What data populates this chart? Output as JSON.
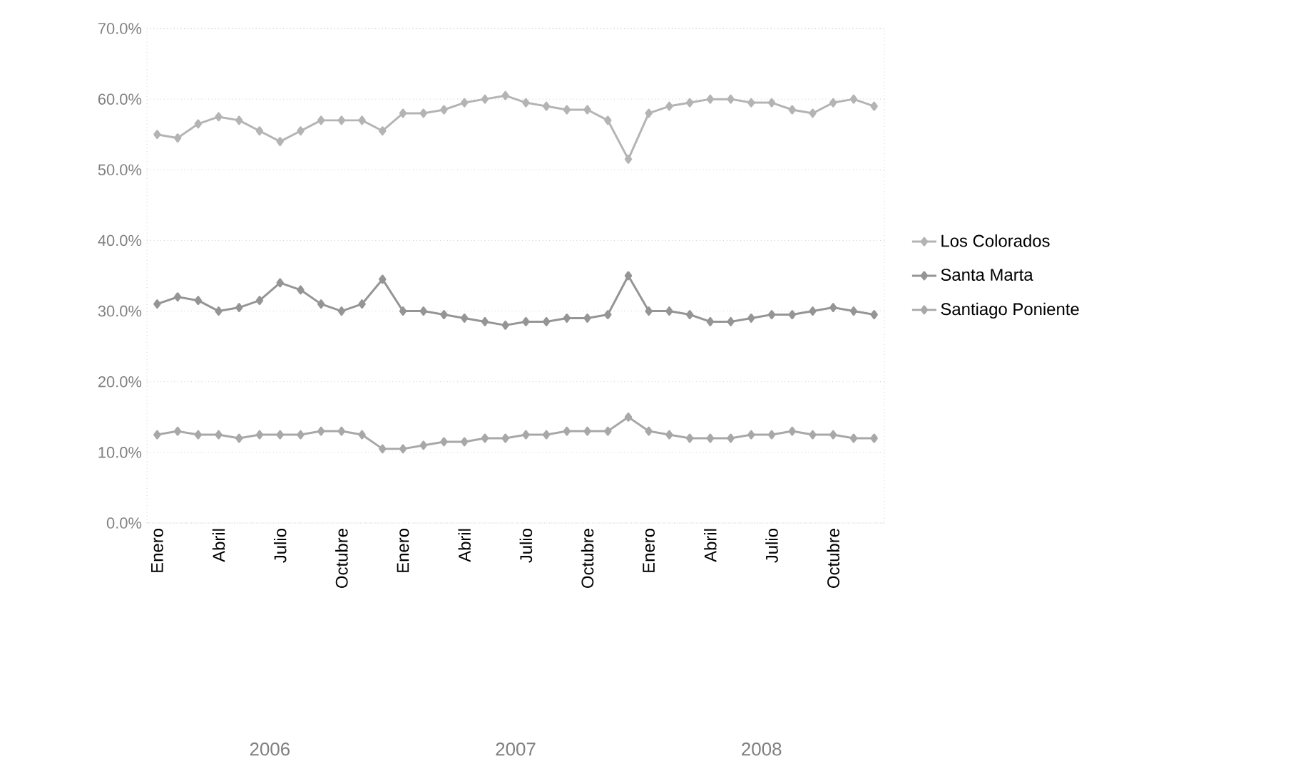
{
  "chart_data": {
    "type": "line",
    "categories": [
      "Enero",
      null,
      null,
      "Abril",
      null,
      null,
      "Julio",
      null,
      null,
      "Octubre",
      null,
      null,
      "Enero",
      null,
      null,
      "Abril",
      null,
      null,
      "Julio",
      null,
      null,
      "Octubre",
      null,
      null,
      "Enero",
      null,
      null,
      "Abril",
      null,
      null,
      "Julio",
      null,
      null,
      "Octubre",
      null,
      null
    ],
    "series": [
      {
        "name": "Los Colorados",
        "color": "#b4b4b4",
        "values": [
          55,
          54.5,
          56.5,
          57.5,
          57,
          55.5,
          54,
          55.5,
          57,
          57,
          57,
          55.5,
          58,
          58,
          58.5,
          59.5,
          60,
          60.5,
          59.5,
          59,
          58.5,
          58.5,
          57,
          51.5,
          58,
          59,
          59.5,
          60,
          60,
          59.5,
          59.5,
          58.5,
          58,
          59.5,
          60,
          59
        ]
      },
      {
        "name": "Santa Marta",
        "color": "#959595",
        "values": [
          31,
          32,
          31.5,
          30,
          30.5,
          31.5,
          34,
          33,
          31,
          30,
          31,
          34.5,
          30,
          30,
          29.5,
          29,
          28.5,
          28,
          28.5,
          28.5,
          29,
          29,
          29.5,
          35,
          30,
          30,
          29.5,
          28.5,
          28.5,
          29,
          29.5,
          29.5,
          30,
          30.5,
          30,
          29.5
        ]
      },
      {
        "name": "Santiago  Poniente",
        "color": "#a8a8a8",
        "values": [
          12.5,
          13,
          12.5,
          12.5,
          12,
          12.5,
          12.5,
          12.5,
          13,
          13,
          12.5,
          10.5,
          10.5,
          11,
          11.5,
          11.5,
          12,
          12,
          12.5,
          12.5,
          13,
          13,
          13,
          15,
          13,
          12.5,
          12,
          12,
          12,
          12.5,
          12.5,
          13,
          12.5,
          12.5,
          12,
          12
        ]
      }
    ],
    "ylim": [
      0,
      70
    ],
    "yticks": [
      {
        "value": 0,
        "label": "0.0%"
      },
      {
        "value": 10,
        "label": "10.0%"
      },
      {
        "value": 20,
        "label": "20.0%"
      },
      {
        "value": 30,
        "label": "30.0%"
      },
      {
        "value": 40,
        "label": "40.0%"
      },
      {
        "value": 50,
        "label": "50.0%"
      },
      {
        "value": 60,
        "label": "60.0%"
      },
      {
        "value": 70,
        "label": "70.0%"
      }
    ],
    "annotations": [
      "2006",
      "2007",
      "2008"
    ],
    "grid": "y",
    "legend": "right",
    "marker": "diamond",
    "line_style": "solid"
  }
}
